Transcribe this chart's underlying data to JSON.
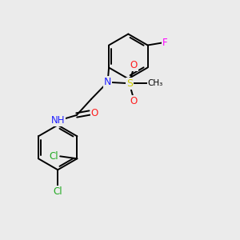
{
  "background_color": "#ebebeb",
  "atom_colors": {
    "C": "#000000",
    "N": "#2020ff",
    "O": "#ff2020",
    "S": "#cccc00",
    "F": "#ff00ff",
    "Cl": "#22aa22",
    "H": "#000000"
  },
  "bond_color": "#000000",
  "bond_width": 1.4,
  "figsize": [
    3.0,
    3.0
  ],
  "dpi": 100
}
